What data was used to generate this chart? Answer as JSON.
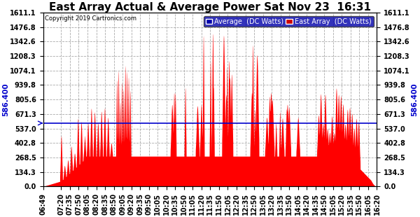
{
  "title": "East Array Actual & Average Power Sat Nov 23  16:31",
  "copyright": "Copyright 2019 Cartronics.com",
  "average_label": "Average  (DC Watts)",
  "east_array_label": "East Array  (DC Watts)",
  "average_value": 586.4,
  "ymax": 1611.1,
  "ymin": 0.0,
  "yticks": [
    0.0,
    134.3,
    268.5,
    402.8,
    537.0,
    671.3,
    805.6,
    939.8,
    1074.1,
    1208.3,
    1342.6,
    1476.8,
    1611.1
  ],
  "background_color": "#ffffff",
  "fill_color": "#ff0000",
  "avg_line_color": "#0000cc",
  "grid_color": "#aaaaaa",
  "title_fontsize": 11,
  "tick_fontsize": 7,
  "time_labels": [
    "06:49",
    "07:20",
    "07:35",
    "07:50",
    "08:05",
    "08:20",
    "08:35",
    "08:50",
    "09:05",
    "09:20",
    "09:35",
    "09:50",
    "10:05",
    "10:20",
    "10:35",
    "10:50",
    "11:05",
    "11:20",
    "11:35",
    "11:50",
    "12:05",
    "12:20",
    "12:35",
    "12:50",
    "13:05",
    "13:20",
    "13:35",
    "13:50",
    "14:05",
    "14:20",
    "14:35",
    "14:50",
    "15:05",
    "15:20",
    "15:35",
    "15:50",
    "16:05",
    "16:20"
  ],
  "avg_label_str": "586.400",
  "legend_bg": "#0000aa",
  "legend_east_bg": "#cc0000"
}
